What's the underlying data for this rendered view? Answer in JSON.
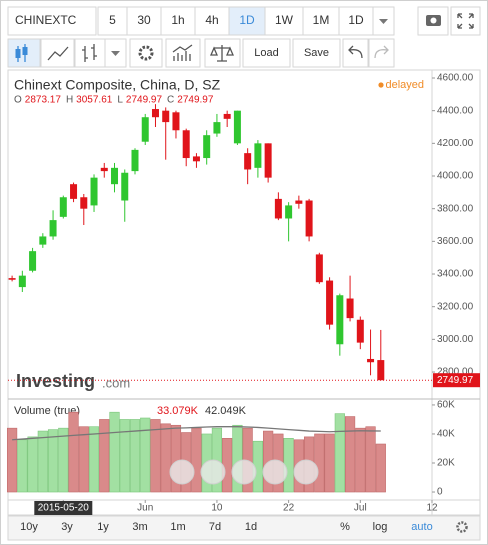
{
  "ui": {
    "symbol": "CHINEXTC",
    "intervals": [
      "5",
      "30",
      "1h",
      "4h",
      "1D",
      "1W",
      "1M",
      "1D"
    ],
    "active_interval": 4,
    "load": "Load",
    "save": "Save",
    "logo": "Investing",
    "logo_suffix": ".com",
    "ranges": [
      "10y",
      "3y",
      "1y",
      "3m",
      "1m",
      "7d",
      "1d"
    ],
    "percent": "%",
    "log": "log",
    "auto": "auto"
  },
  "chart_data": [
    {
      "type": "candlestick",
      "title": "Chinext Composite, China, D, SZ",
      "status": "delayed",
      "ohlc_letters": [
        "O",
        "H",
        "L",
        "C"
      ],
      "up_color": "#2fc62f",
      "down_color": "#e0141a",
      "candles": [
        {
          "open": 3375,
          "high": 3390,
          "low": 3355,
          "close": 3365
        },
        {
          "open": 3320,
          "high": 3420,
          "low": 3290,
          "close": 3390
        },
        {
          "open": 3420,
          "high": 3560,
          "low": 3410,
          "close": 3540
        },
        {
          "open": 3580,
          "high": 3650,
          "low": 3560,
          "close": 3630
        },
        {
          "open": 3630,
          "high": 3790,
          "low": 3610,
          "close": 3730
        },
        {
          "open": 3750,
          "high": 3880,
          "low": 3740,
          "close": 3870
        },
        {
          "open": 3950,
          "high": 3960,
          "low": 3840,
          "close": 3860
        },
        {
          "open": 3870,
          "high": 3890,
          "low": 3700,
          "close": 3800
        },
        {
          "open": 3820,
          "high": 4010,
          "low": 3780,
          "close": 3990
        },
        {
          "open": 4050,
          "high": 4080,
          "low": 3990,
          "close": 4030
        },
        {
          "open": 3950,
          "high": 4080,
          "low": 3900,
          "close": 4050
        },
        {
          "open": 3850,
          "high": 4040,
          "low": 3720,
          "close": 4020
        },
        {
          "open": 4030,
          "high": 4170,
          "low": 4010,
          "close": 4160
        },
        {
          "open": 4210,
          "high": 4380,
          "low": 4190,
          "close": 4360
        },
        {
          "open": 4410,
          "high": 4440,
          "low": 4300,
          "close": 4360
        },
        {
          "open": 4400,
          "high": 4420,
          "low": 4100,
          "close": 4330
        },
        {
          "open": 4390,
          "high": 4400,
          "low": 4230,
          "close": 4280
        },
        {
          "open": 4280,
          "high": 4290,
          "low": 4060,
          "close": 4110
        },
        {
          "open": 4120,
          "high": 4140,
          "low": 4050,
          "close": 4090
        },
        {
          "open": 4110,
          "high": 4280,
          "low": 4070,
          "close": 4250
        },
        {
          "open": 4260,
          "high": 4380,
          "low": 4240,
          "close": 4330
        },
        {
          "open": 4380,
          "high": 4400,
          "low": 4300,
          "close": 4350
        },
        {
          "open": 4200,
          "high": 4400,
          "low": 4190,
          "close": 4400
        },
        {
          "open": 4140,
          "high": 4170,
          "low": 3950,
          "close": 4040
        },
        {
          "open": 4050,
          "high": 4220,
          "low": 3990,
          "close": 4200
        },
        {
          "open": 4200,
          "high": 4200,
          "low": 3960,
          "close": 3990
        },
        {
          "open": 3860,
          "high": 3900,
          "low": 3730,
          "close": 3740
        },
        {
          "open": 3740,
          "high": 3840,
          "low": 3600,
          "close": 3820
        },
        {
          "open": 3850,
          "high": 3880,
          "low": 3800,
          "close": 3830
        },
        {
          "open": 3850,
          "high": 3860,
          "low": 3600,
          "close": 3630
        },
        {
          "open": 3520,
          "high": 3530,
          "low": 3340,
          "close": 3350
        },
        {
          "open": 3360,
          "high": 3380,
          "low": 3060,
          "close": 3090
        },
        {
          "open": 2970,
          "high": 3280,
          "low": 2900,
          "close": 3270
        },
        {
          "open": 3250,
          "high": 3390,
          "low": 3110,
          "close": 3130
        },
        {
          "open": 3120,
          "high": 3140,
          "low": 2940,
          "close": 2980
        },
        {
          "open": 2880,
          "high": 3060,
          "low": 2780,
          "close": 2860
        },
        {
          "open": 2873.17,
          "high": 3057.61,
          "low": 2749.97,
          "close": 2749.97
        }
      ],
      "xlim": [
        -0.4,
        41
      ],
      "xticks": [
        {
          "value": 5,
          "label": "2015-05-20"
        },
        {
          "value": 13,
          "label": "Jun"
        },
        {
          "value": 20,
          "label": "10"
        },
        {
          "value": 27,
          "label": "22"
        },
        {
          "value": 34,
          "label": "Jul"
        },
        {
          "value": 41,
          "label": "12"
        }
      ],
      "highlight_tick": 0,
      "ylim": [
        2641,
        4649
      ],
      "yticks": [
        {
          "value": 4600,
          "label": "4600.00"
        },
        {
          "value": 4400,
          "label": "4400.00"
        },
        {
          "value": 4200,
          "label": "4200.00"
        },
        {
          "value": 4000,
          "label": "4000.00"
        },
        {
          "value": 3800,
          "label": "3800.00"
        },
        {
          "value": 3600,
          "label": "3600.00"
        },
        {
          "value": 3400,
          "label": "3400.00"
        },
        {
          "value": 3200,
          "label": "3200.00"
        },
        {
          "value": 3000,
          "label": "3000.00"
        },
        {
          "value": 2800,
          "label": "2800.00"
        }
      ],
      "grid": false
    },
    {
      "type": "bar",
      "title": "Volume (true)",
      "up_color": "#a2e0a2",
      "down_color": "#d98a8a",
      "values": [
        44000,
        36000,
        38000,
        42000,
        43000,
        44000,
        55000,
        45000,
        45000,
        50000,
        55000,
        50000,
        50000,
        51000,
        50000,
        47000,
        46000,
        41000,
        44000,
        40000,
        44000,
        37000,
        46000,
        44000,
        35000,
        42000,
        40000,
        37000,
        36000,
        38000,
        40000,
        40000,
        54000,
        52000,
        44000,
        45000,
        33079
      ],
      "last_label": "33.079K",
      "ma": {
        "color": "#777777",
        "last_label": "42.049K",
        "values": [
          36000,
          36500,
          37000,
          37500,
          38000,
          38500,
          39000,
          39500,
          40000,
          40500,
          41000,
          41500,
          42000,
          42500,
          43000,
          43500,
          44000,
          44200,
          44500,
          44800,
          45000,
          45000,
          45000,
          44800,
          44500,
          44000,
          43500,
          43000,
          42500,
          42000,
          41800,
          41500,
          41800,
          42000,
          42200,
          42100,
          42049
        ]
      },
      "ylim": [
        -5500,
        63400
      ],
      "yticks": [
        {
          "value": 60000,
          "label": "60K"
        },
        {
          "value": 40000,
          "label": "40K"
        },
        {
          "value": 20000,
          "label": "20K"
        },
        0
      ]
    }
  ]
}
